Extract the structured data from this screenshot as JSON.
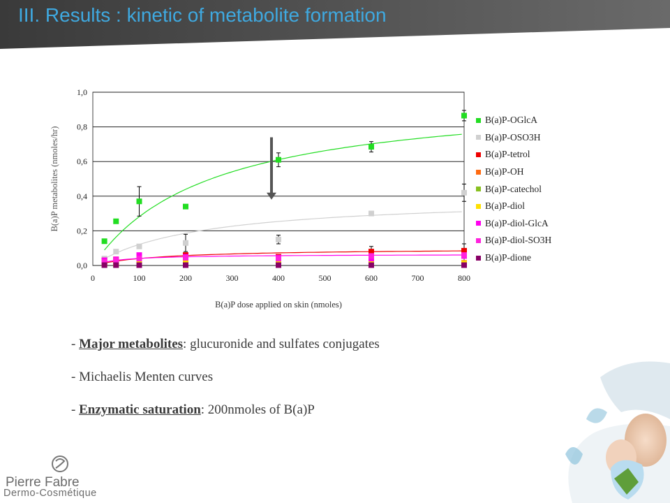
{
  "slide": {
    "title": "III. Results : kinetic of metabolite formation",
    "accent_color": "#3fa9e0"
  },
  "bullets": [
    {
      "prefix": "- ",
      "emphasis": "Major metabolites",
      "text": ": glucuronide and sulfates conjugates"
    },
    {
      "prefix": "- ",
      "emphasis": "",
      "text": "Michaelis Menten curves"
    },
    {
      "prefix": "- ",
      "emphasis": "Enzymatic saturation",
      "text": ": 200nmoles of B(a)P"
    }
  ],
  "logo": {
    "line1": "Pierre Fabre",
    "line2": "Dermo-Cosmétique"
  },
  "chart_data": {
    "type": "scatter",
    "xlabel": "B(a)P dose applied on skin (nmoles)",
    "ylabel": "B(a)P metabolites (nmoles/hr)",
    "xlim": [
      0,
      800
    ],
    "ylim": [
      0,
      1.0
    ],
    "x_ticks": [
      "0",
      "100",
      "200",
      "300",
      "400",
      "500",
      "600",
      "700",
      "800"
    ],
    "y_ticks": [
      "0,0",
      "0,2",
      "0,4",
      "0,6",
      "0,8",
      "1,0"
    ],
    "grid": "horizontal",
    "legend_position": "right",
    "series": [
      {
        "name": "B(a)P-OGlcA",
        "color": "#22dd22",
        "x": [
          25,
          50,
          100,
          200,
          400,
          600,
          800
        ],
        "y": [
          0.14,
          0.255,
          0.37,
          0.34,
          0.61,
          0.685,
          0.865
        ],
        "err": [
          0,
          0,
          0.085,
          0.005,
          0.04,
          0.03,
          0.03
        ],
        "fit": {
          "vmax": 1.0,
          "km": 255
        }
      },
      {
        "name": "B(a)P-OSO3H",
        "color": "#d0d0d0",
        "x": [
          25,
          50,
          100,
          200,
          400,
          600,
          800
        ],
        "y": [
          0.04,
          0.08,
          0.11,
          0.13,
          0.15,
          0.3,
          0.42
        ],
        "err": [
          0,
          0,
          0,
          0.05,
          0.025,
          0,
          0.05
        ],
        "fit": {
          "vmax": 0.4,
          "km": 230
        }
      },
      {
        "name": "B(a)P-tetrol",
        "color": "#ee0000",
        "x": [
          25,
          50,
          100,
          200,
          400,
          600,
          800
        ],
        "y": [
          0.03,
          0.035,
          0.045,
          0.06,
          0.05,
          0.08,
          0.085
        ],
        "err": [
          0,
          0,
          0,
          0,
          0,
          0.03,
          0.04
        ],
        "fit": {
          "vmax": 0.1,
          "km": 150
        }
      },
      {
        "name": "B(a)P-OH",
        "color": "#ff6a10",
        "x": [
          25,
          50,
          100,
          200,
          400,
          600,
          800
        ],
        "y": [
          0.01,
          0.012,
          0.015,
          0.015,
          0.015,
          0.015,
          0.015
        ],
        "err": [
          0,
          0,
          0,
          0,
          0,
          0,
          0
        ]
      },
      {
        "name": "B(a)P-catechol",
        "color": "#88c020",
        "x": [
          25,
          50,
          100,
          200,
          400,
          600,
          800
        ],
        "y": [
          0.005,
          0.005,
          0.005,
          0.008,
          0.008,
          0.008,
          0.008
        ],
        "err": [
          0,
          0,
          0,
          0,
          0,
          0,
          0
        ]
      },
      {
        "name": "B(a)P-diol",
        "color": "#ffe000",
        "x": [
          25,
          50,
          100,
          200,
          400,
          600,
          800
        ],
        "y": [
          0.01,
          0.01,
          0.01,
          0.012,
          0.012,
          0.012,
          0.012
        ],
        "err": [
          0,
          0,
          0,
          0,
          0,
          0,
          0
        ]
      },
      {
        "name": "B(a)P-diol-GlcA",
        "color": "#ff00ee",
        "x": [
          25,
          50,
          100,
          200,
          400,
          600,
          800
        ],
        "y": [
          0.03,
          0.035,
          0.06,
          0.05,
          0.045,
          0.04,
          0.055
        ],
        "err": [
          0,
          0,
          0,
          0,
          0,
          0,
          0
        ],
        "fit": {
          "vmax": 0.065,
          "km": 60
        }
      },
      {
        "name": "B(a)P-diol-SO3H",
        "color": "#ff22dd",
        "x": [
          25,
          50,
          100,
          200,
          400,
          600,
          800
        ],
        "y": [
          0.02,
          0.03,
          0.04,
          0.045,
          0.04,
          0.055,
          0.06
        ],
        "err": [
          0,
          0,
          0,
          0,
          0,
          0,
          0
        ]
      },
      {
        "name": "B(a)P-dione",
        "color": "#880066",
        "x": [
          25,
          50,
          100,
          200,
          400,
          600,
          800
        ],
        "y": [
          0.002,
          0.002,
          0.002,
          0.002,
          0.002,
          0.002,
          0.002
        ],
        "err": [
          0,
          0,
          0,
          0,
          0,
          0,
          0
        ]
      }
    ],
    "annotation": {
      "type": "arrow-down",
      "x": 400,
      "y_from": 0.74,
      "y_to": 0.38,
      "color": "#555555"
    }
  }
}
